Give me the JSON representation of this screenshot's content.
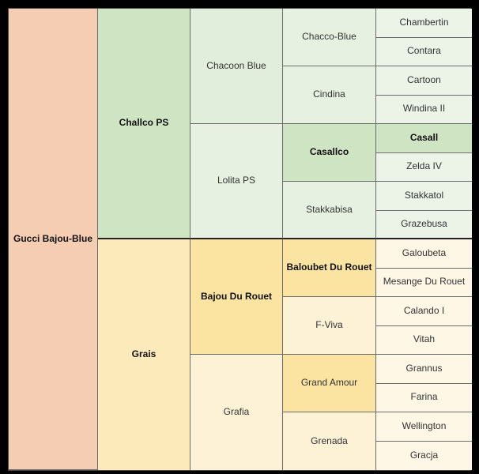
{
  "pedigree": {
    "root": "Gucci Bajou-Blue",
    "sire": "Challco PS",
    "dam": "Grais",
    "sire_sire": "Chacoon Blue",
    "sire_dam": "Lolita PS",
    "dam_sire": "Bajou Du Rouet",
    "dam_dam": "Grafia",
    "gen3": [
      "Chacco-Blue",
      "Cindina",
      "Casallco",
      "Stakkabisa",
      "Baloubet Du Rouet",
      "F-Viva",
      "Grand Amour",
      "Grenada"
    ],
    "gen4": [
      "Chambertin",
      "Contara",
      "Cartoon",
      "Windina II",
      "Casall",
      "Zelda IV",
      "Stakkatol",
      "Grazebusa",
      "Galoubeta",
      "Mesange Du Rouet",
      "Calando I",
      "Vitah",
      "Grannus",
      "Farina",
      "Wellington",
      "Gracja"
    ]
  }
}
